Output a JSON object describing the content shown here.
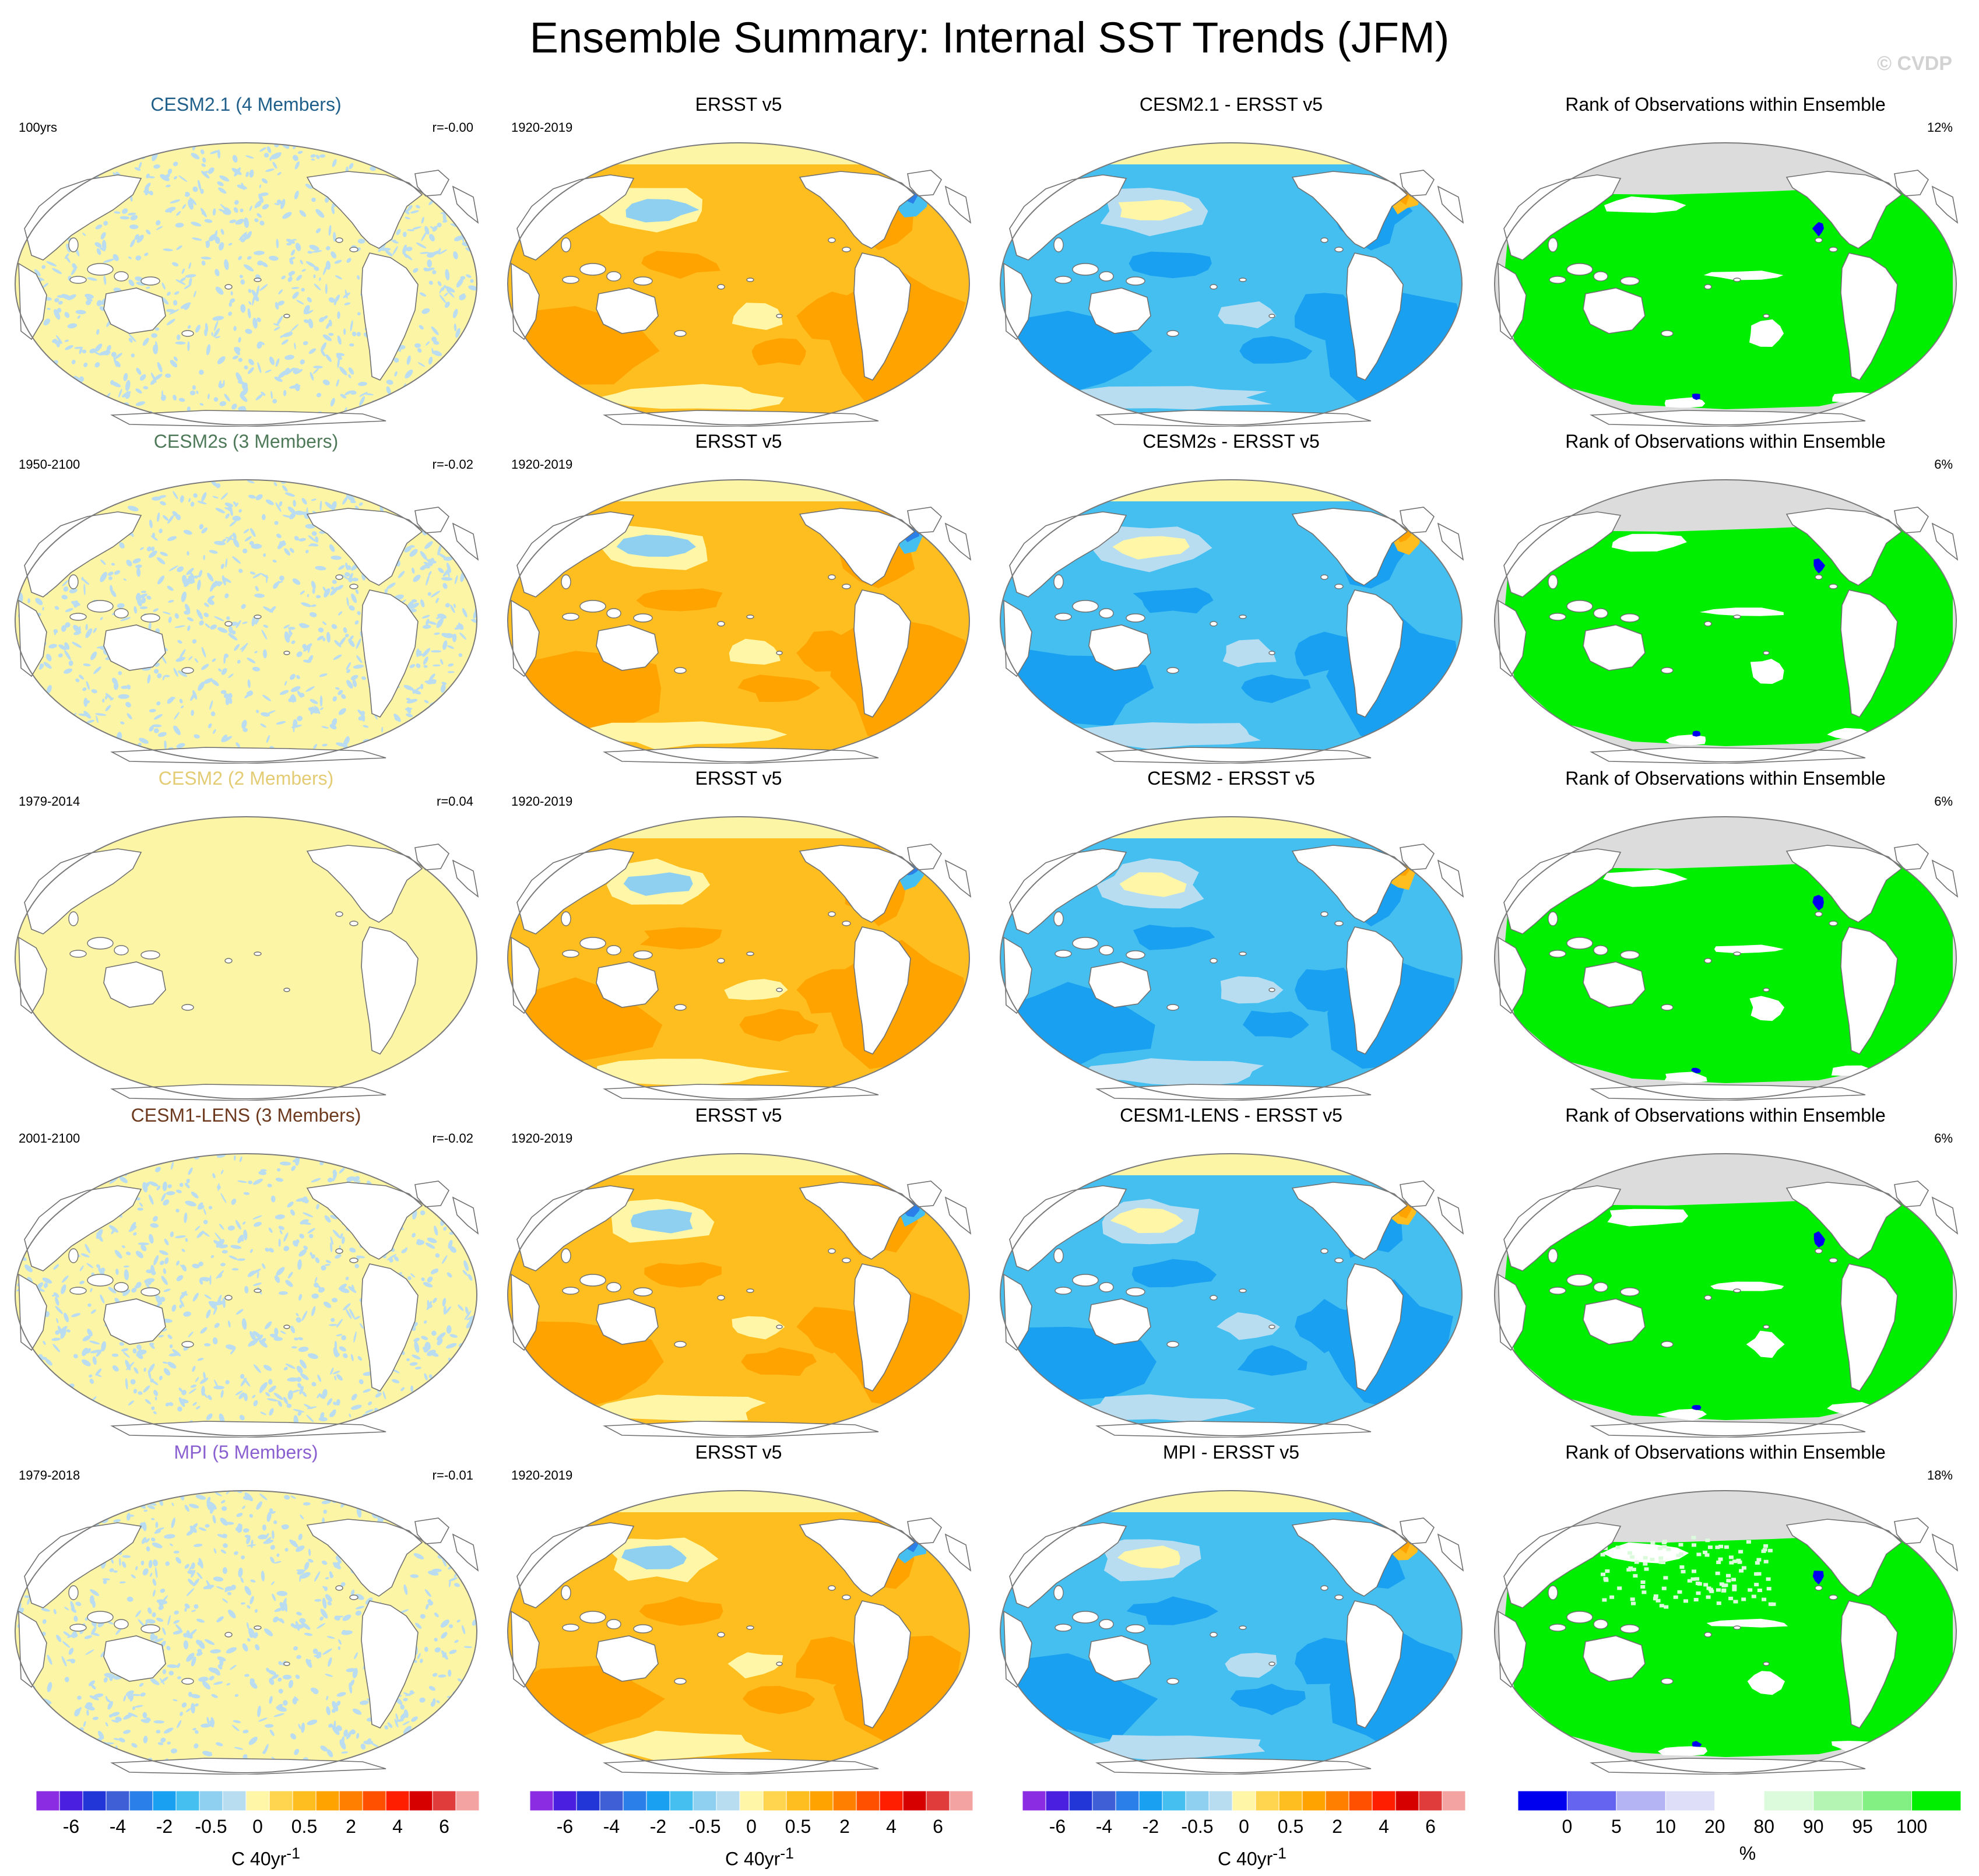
{
  "title": "Ensemble Summary: Internal SST Trends (JFM)",
  "watermark": "© CVDP",
  "rows": [
    {
      "model": {
        "title": "CESM2.1 (4 Members)",
        "color": "#1f5f8a",
        "period": "100yrs",
        "r": "r=-0.00",
        "pattern": "noise"
      },
      "obs": {
        "title": "ERSST v5",
        "period": "1920-2019"
      },
      "diff": {
        "title": "CESM2.1 - ERSST v5"
      },
      "rank": {
        "title": "Rank of Observations within Ensemble",
        "pct": "12%"
      }
    },
    {
      "model": {
        "title": "CESM2s (3 Members)",
        "color": "#4f7a5a",
        "period": "1950-2100",
        "r": "r=-0.02",
        "pattern": "noise"
      },
      "obs": {
        "title": "ERSST v5",
        "period": "1920-2019"
      },
      "diff": {
        "title": "CESM2s - ERSST v5"
      },
      "rank": {
        "title": "Rank of Observations within Ensemble",
        "pct": "6%"
      }
    },
    {
      "model": {
        "title": "CESM2 (2 Members)",
        "color": "#e3cc74",
        "period": "1979-2014",
        "r": "r=0.04",
        "pattern": "flat"
      },
      "obs": {
        "title": "ERSST v5",
        "period": "1920-2019"
      },
      "diff": {
        "title": "CESM2 - ERSST v5"
      },
      "rank": {
        "title": "Rank of Observations within Ensemble",
        "pct": "6%"
      }
    },
    {
      "model": {
        "title": "CESM1-LENS (3 Members)",
        "color": "#6e3a1f",
        "period": "2001-2100",
        "r": "r=-0.02",
        "pattern": "noise"
      },
      "obs": {
        "title": "ERSST v5",
        "period": "1920-2019"
      },
      "diff": {
        "title": "CESM1-LENS - ERSST v5"
      },
      "rank": {
        "title": "Rank of Observations within Ensemble",
        "pct": "6%"
      }
    },
    {
      "model": {
        "title": "MPI (5 Members)",
        "color": "#8a5fd0",
        "period": "1979-2018",
        "r": "r=-0.01",
        "pattern": "noise"
      },
      "obs": {
        "title": "ERSST v5",
        "period": "1920-2019"
      },
      "diff": {
        "title": "MPI - ERSST v5"
      },
      "rank": {
        "title": "Rank of Observations within Ensemble",
        "pct": "18%"
      }
    }
  ],
  "chart_data": [
    {
      "type": "heatmap",
      "role": "sst-trend colorbar (model, obs, difference columns)",
      "units": "C 40yr",
      "units_superscript": "-1",
      "boundaries": [
        -7,
        -6,
        -5,
        -4,
        -3,
        -2,
        -1,
        -0.5,
        -0.25,
        0,
        0.25,
        0.5,
        1,
        2,
        3,
        4,
        5,
        6,
        7
      ],
      "tick_labels": [
        "-6",
        "-4",
        "-2",
        "-0.5",
        "0",
        "0.5",
        "2",
        "4",
        "6"
      ],
      "tick_values": [
        -6,
        -4,
        -2,
        -0.5,
        0,
        0.5,
        2,
        4,
        6
      ],
      "colors": [
        "#8b2be2",
        "#4b1fe0",
        "#2236d8",
        "#3f5fd7",
        "#2a7fe8",
        "#1aa0f0",
        "#45bff0",
        "#8fd0f0",
        "#b9ddf0",
        "#fff6a8",
        "#ffd54f",
        "#ffbe20",
        "#ffa300",
        "#ff8000",
        "#ff5000",
        "#ff1e00",
        "#d60000",
        "#e03c3c",
        "#f4a3a3"
      ]
    },
    {
      "type": "heatmap",
      "role": "rank colorbar",
      "units": "%",
      "boundaries": [
        0,
        5,
        10,
        20,
        80,
        90,
        95,
        100
      ],
      "tick_labels": [
        "0",
        "5",
        "10",
        "20",
        "80",
        "90",
        "95",
        "100"
      ],
      "tick_values": [
        0,
        5,
        10,
        20,
        80,
        90,
        95,
        100
      ],
      "colors": [
        "#0000ee",
        "#6464f0",
        "#b4b4f4",
        "#dedef8",
        "#ffffff",
        "#dcfadc",
        "#b4f5b4",
        "#82f082",
        "#00ee00"
      ]
    }
  ]
}
